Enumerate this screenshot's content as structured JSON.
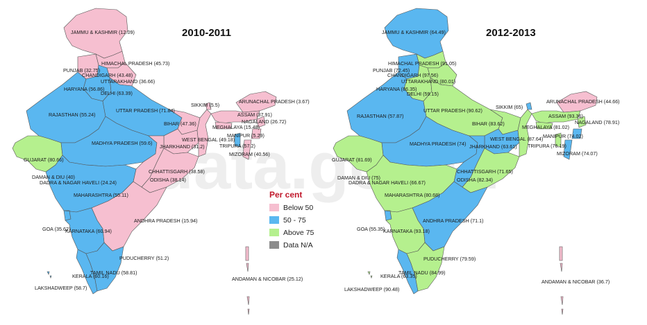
{
  "watermark": "data.gov.in",
  "legend": {
    "title": "Per cent",
    "items": [
      {
        "label": "Below 50",
        "color": "#f6bfd0"
      },
      {
        "label": "50 - 75",
        "color": "#5ab7f0"
      },
      {
        "label": "Above 75",
        "color": "#b5f08e"
      },
      {
        "label": "Data N/A",
        "color": "#8c8c8c"
      }
    ]
  },
  "maps": [
    {
      "title": "2010-2011",
      "labels": [
        {
          "id": "jk",
          "text": "JAMMU & KASHMIR (12.09)"
        },
        {
          "id": "hp",
          "text": "HIMACHAL PRADESH (45.73)"
        },
        {
          "id": "pb",
          "text": "PUNJAB (32.75)"
        },
        {
          "id": "ch",
          "text": "CHANDIGARH (43.48)"
        },
        {
          "id": "uk",
          "text": "UTTARAKHAND (36.66)"
        },
        {
          "id": "hr",
          "text": "HARYANA (56.86)"
        },
        {
          "id": "dl",
          "text": "DELHI (63.39)"
        },
        {
          "id": "sk",
          "text": "SIKKIM (5.5)"
        },
        {
          "id": "ar",
          "text": "ARUNACHAL PRADESH (3.67)"
        },
        {
          "id": "rj",
          "text": "RAJASTHAN (55.24)"
        },
        {
          "id": "up",
          "text": "UTTAR PRADESH (71.84)"
        },
        {
          "id": "as",
          "text": "ASSAM (37.91)"
        },
        {
          "id": "br",
          "text": "BIHAR (47.36)"
        },
        {
          "id": "nl",
          "text": "NAGALAND (26.72)"
        },
        {
          "id": "ml",
          "text": "MEGHALAYA (15.48)"
        },
        {
          "id": "mn",
          "text": "MANIPUR (5.29)"
        },
        {
          "id": "mp",
          "text": "MADHYA PRADESH (59.6)"
        },
        {
          "id": "wb",
          "text": "WEST BENGAL (49.18)"
        },
        {
          "id": "tr",
          "text": "TRIPURA (57.2)"
        },
        {
          "id": "jh",
          "text": "JHARKHAND (31.2)"
        },
        {
          "id": "mz",
          "text": "MIZORAM (40.56)"
        },
        {
          "id": "gj",
          "text": "GUJARAT (80.66)"
        },
        {
          "id": "cg",
          "text": "CHHATTISGARH (38.58)"
        },
        {
          "id": "dd",
          "text": "DAMAN & DIU (40)"
        },
        {
          "id": "od",
          "text": "ODISHA (38.14)"
        },
        {
          "id": "dn",
          "text": "DADRA & NAGAR HAVELI (24.24)"
        },
        {
          "id": "mh",
          "text": "MAHARASHTRA (55.11)"
        },
        {
          "id": "ap",
          "text": "ANDHRA PRADESH (15.94)"
        },
        {
          "id": "ga",
          "text": "GOA (35.62)"
        },
        {
          "id": "ka",
          "text": "KARNATAKA (60.94)"
        },
        {
          "id": "py",
          "text": "PUDUCHERRY (51.2)"
        },
        {
          "id": "tn",
          "text": "TAMIL NADU (58.81)"
        },
        {
          "id": "kl",
          "text": "KERALA (60.16)"
        },
        {
          "id": "an",
          "text": "ANDAMAN & NICOBAR (25.12)"
        },
        {
          "id": "lk",
          "text": "LAKSHADWEEP (58.7)"
        }
      ]
    },
    {
      "title": "2012-2013",
      "labels": [
        {
          "id": "jk",
          "text": "JAMMU & KASHMIR (64.49)"
        },
        {
          "id": "hp",
          "text": "HIMACHAL PRADESH (91.05)"
        },
        {
          "id": "pb",
          "text": "PUNJAB (72.45)"
        },
        {
          "id": "ch",
          "text": "CHANDIGARH (97.56)"
        },
        {
          "id": "uk",
          "text": "UTTARAKHAND (80.01)"
        },
        {
          "id": "hr",
          "text": "HARYANA (86.35)"
        },
        {
          "id": "dl",
          "text": "DELHI (59.15)"
        },
        {
          "id": "up",
          "text": "UTTAR PRADESH (90.62)"
        },
        {
          "id": "sk",
          "text": "SIKKIM (65)"
        },
        {
          "id": "ar",
          "text": "ARUNACHAL PRADESH (44.66)"
        },
        {
          "id": "rj",
          "text": "RAJASTHAN (57.87)"
        },
        {
          "id": "as",
          "text": "ASSAM (93.36)"
        },
        {
          "id": "br",
          "text": "BIHAR (83.62)"
        },
        {
          "id": "nl",
          "text": "NAGALAND (78.91)"
        },
        {
          "id": "ml",
          "text": "MEGHALAYA (81.02)"
        },
        {
          "id": "mn",
          "text": "MANIPUR (74.02)"
        },
        {
          "id": "mp",
          "text": "MADHYA PRADESH (74)"
        },
        {
          "id": "wb",
          "text": "WEST BENGAL (87.64)"
        },
        {
          "id": "tr",
          "text": "TRIPURA (76.19)"
        },
        {
          "id": "jh",
          "text": "JHARKHAND (63.61)"
        },
        {
          "id": "mz",
          "text": "MIZORAM (74.07)"
        },
        {
          "id": "gj",
          "text": "GUJARAT (81.69)"
        },
        {
          "id": "cg",
          "text": "CHHATTISGARH (71.65)"
        },
        {
          "id": "dd",
          "text": "DAMAN & DIU (75)"
        },
        {
          "id": "od",
          "text": "ODISHA (82.34)"
        },
        {
          "id": "dn",
          "text": "DADRA & NAGAR HAVELI (66.67)"
        },
        {
          "id": "mh",
          "text": "MAHARASHTRA (80.68)"
        },
        {
          "id": "ap",
          "text": "ANDHRA PRADESH (71.1)"
        },
        {
          "id": "ga",
          "text": "GOA (55.35)"
        },
        {
          "id": "ka",
          "text": "KARNATAKA (93.18)"
        },
        {
          "id": "py",
          "text": "PUDUCHERRY (79.59)"
        },
        {
          "id": "tn",
          "text": "TAMIL NADU (84.99)"
        },
        {
          "id": "kl",
          "text": "KERALA (63.35)"
        },
        {
          "id": "an",
          "text": "ANDAMAN & NICOBAR (36.7)"
        },
        {
          "id": "lk",
          "text": "LAKSHADWEEP (90.48)"
        }
      ]
    }
  ]
}
